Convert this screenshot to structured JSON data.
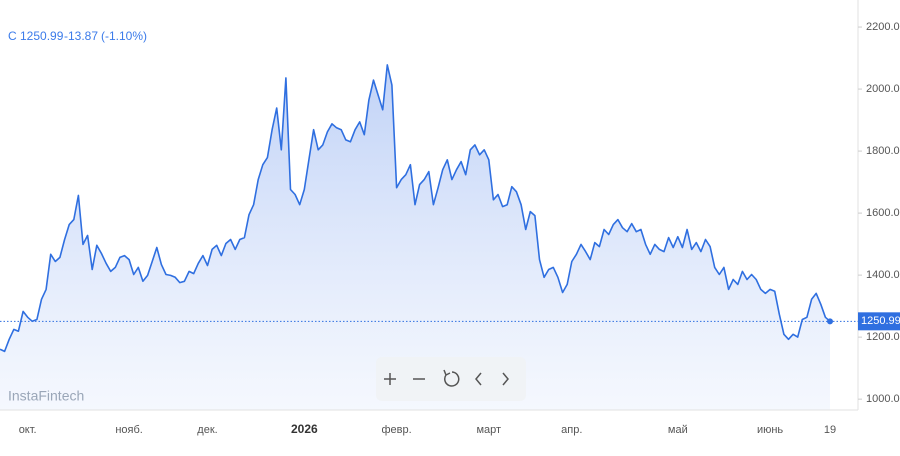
{
  "chart_data": {
    "type": "area",
    "symbol": "C",
    "change": "-13.87",
    "change_pct": "(-1.10%)",
    "watermark": "InstaFintech",
    "last_price": {
      "value": 1250.99,
      "label": "1250.99"
    },
    "color": "#2f6fe0",
    "ylim": [
      965,
      2255
    ],
    "yticks": [
      {
        "value": 1000,
        "label": "1000.00"
      },
      {
        "value": 1200,
        "label": "1200.00"
      },
      {
        "value": 1400,
        "label": "1400.00"
      },
      {
        "value": 1600,
        "label": "1600.00"
      },
      {
        "value": 1800,
        "label": "1800.00"
      },
      {
        "value": 2000,
        "label": "2000.00"
      },
      {
        "value": 2200,
        "label": "2200.00"
      }
    ],
    "categories": [
      null,
      null,
      null,
      null,
      null,
      null,
      "окт.",
      null,
      null,
      null,
      null,
      null,
      null,
      null,
      null,
      null,
      null,
      null,
      null,
      null,
      null,
      null,
      null,
      null,
      null,
      null,
      null,
      null,
      "нояб.",
      null,
      null,
      null,
      null,
      null,
      null,
      null,
      null,
      null,
      null,
      null,
      null,
      null,
      null,
      null,
      null,
      "дек.",
      null,
      null,
      null,
      null,
      null,
      null,
      null,
      null,
      null,
      null,
      null,
      null,
      null,
      null,
      null,
      null,
      null,
      null,
      null,
      null,
      "2026",
      null,
      null,
      null,
      null,
      null,
      null,
      null,
      null,
      null,
      null,
      null,
      null,
      null,
      null,
      null,
      null,
      null,
      null,
      null,
      "февр.",
      null,
      null,
      null,
      null,
      null,
      null,
      null,
      null,
      null,
      null,
      null,
      null,
      null,
      null,
      null,
      null,
      null,
      null,
      null,
      "март",
      null,
      null,
      null,
      null,
      null,
      null,
      null,
      null,
      null,
      null,
      null,
      null,
      null,
      null,
      null,
      null,
      null,
      "апр.",
      null,
      null,
      null,
      null,
      null,
      null,
      null,
      null,
      null,
      null,
      null,
      null,
      null,
      null,
      null,
      null,
      null,
      null,
      null,
      null,
      null,
      null,
      "май",
      null,
      null,
      null,
      null,
      null,
      null,
      null,
      null,
      null,
      null,
      null,
      null,
      null,
      null,
      null,
      null,
      null,
      null,
      null,
      "июнь",
      null,
      null,
      null,
      null,
      null,
      null,
      null,
      null,
      null,
      null,
      null,
      null,
      "19"
    ],
    "values": [
      1161,
      1154,
      1193,
      1225,
      1219,
      1283,
      1264,
      1251,
      1257,
      1322,
      1354,
      1467,
      1444,
      1457,
      1515,
      1563,
      1579,
      1657,
      1499,
      1528,
      1418,
      1496,
      1470,
      1438,
      1412,
      1425,
      1457,
      1463,
      1450,
      1402,
      1425,
      1380,
      1399,
      1444,
      1489,
      1434,
      1402,
      1399,
      1393,
      1376,
      1380,
      1412,
      1405,
      1438,
      1463,
      1431,
      1483,
      1496,
      1463,
      1502,
      1515,
      1483,
      1515,
      1521,
      1595,
      1627,
      1708,
      1756,
      1779,
      1869,
      1939,
      1804,
      2036,
      1676,
      1660,
      1627,
      1676,
      1772,
      1869,
      1804,
      1820,
      1862,
      1888,
      1875,
      1869,
      1836,
      1830,
      1869,
      1894,
      1853,
      1965,
      2029,
      1981,
      1933,
      2078,
      2013,
      1682,
      1708,
      1724,
      1756,
      1627,
      1692,
      1708,
      1734,
      1627,
      1682,
      1740,
      1772,
      1708,
      1740,
      1766,
      1724,
      1804,
      1820,
      1788,
      1804,
      1772,
      1643,
      1660,
      1621,
      1627,
      1685,
      1669,
      1627,
      1547,
      1605,
      1592,
      1450,
      1393,
      1418,
      1425,
      1393,
      1344,
      1370,
      1444,
      1467,
      1499,
      1476,
      1450,
      1505,
      1492,
      1547,
      1531,
      1563,
      1579,
      1553,
      1540,
      1566,
      1540,
      1547,
      1499,
      1467,
      1499,
      1483,
      1476,
      1521,
      1489,
      1524,
      1489,
      1547,
      1483,
      1505,
      1476,
      1515,
      1492,
      1425,
      1402,
      1425,
      1354,
      1386,
      1370,
      1412,
      1386,
      1402,
      1386,
      1354,
      1341,
      1354,
      1348,
      1274,
      1209,
      1193,
      1209,
      1200,
      1257,
      1264,
      1322,
      1341,
      1306,
      1264,
      1250.99
    ]
  }
}
